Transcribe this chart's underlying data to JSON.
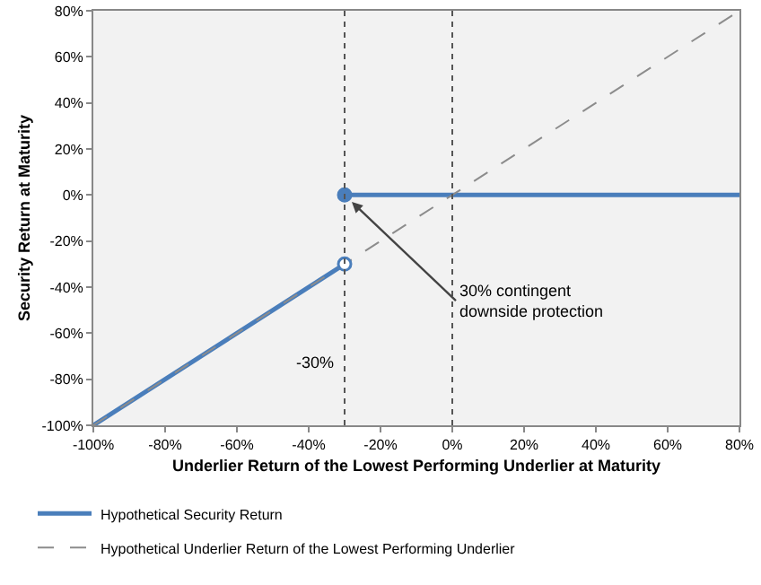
{
  "chart_data": {
    "type": "line",
    "xlabel": "Underlier Return of the Lowest Performing Underlier at Maturity",
    "ylabel": "Security Return at Maturity",
    "xlim": [
      -100,
      80
    ],
    "ylim": [
      -100,
      80
    ],
    "xticks": [
      {
        "value": -100,
        "label": "-100%"
      },
      {
        "value": -80,
        "label": "-80%"
      },
      {
        "value": -60,
        "label": "-60%"
      },
      {
        "value": -40,
        "label": "-40%"
      },
      {
        "value": -20,
        "label": "-20%"
      },
      {
        "value": 0,
        "label": "0%"
      },
      {
        "value": 20,
        "label": "20%"
      },
      {
        "value": 40,
        "label": "40%"
      },
      {
        "value": 60,
        "label": "60%"
      },
      {
        "value": 80,
        "label": "80%"
      }
    ],
    "yticks": [
      {
        "value": -100,
        "label": "-100%"
      },
      {
        "value": -80,
        "label": "-80%"
      },
      {
        "value": -60,
        "label": "-60%"
      },
      {
        "value": -40,
        "label": "-40%"
      },
      {
        "value": -20,
        "label": "-20%"
      },
      {
        "value": 0,
        "label": "0%"
      },
      {
        "value": 20,
        "label": "20%"
      },
      {
        "value": 40,
        "label": "40%"
      },
      {
        "value": 60,
        "label": "60%"
      },
      {
        "value": 80,
        "label": "80%"
      }
    ],
    "series": [
      {
        "name": "Hypothetical Security Return",
        "color": "#4a7ebb",
        "x": [
          -100,
          -30,
          null,
          -30,
          80
        ],
        "values": [
          -100,
          -30,
          null,
          0,
          0
        ],
        "line_style": "solid",
        "marker": "none"
      },
      {
        "name": "Hypothetical Underlier Return of the Lowest Performing Underlier",
        "color": "#8c8c8c",
        "x": [
          -100,
          80
        ],
        "values": [
          -100,
          80
        ],
        "line_style": "dashed",
        "marker": "none"
      },
      {
        "type": "scatter",
        "color": "#4a7ebb",
        "x": [
          -30,
          -30
        ],
        "values": [
          -30,
          0
        ],
        "colors": [
          "#ffffff",
          "#4a7ebb"
        ],
        "marker": "circle"
      }
    ],
    "ref_lines": [
      {
        "axis": "x",
        "value": -30,
        "label": "-30%",
        "line_style": "dotted",
        "color": "#555555"
      },
      {
        "axis": "x",
        "value": 0,
        "line_style": "dotted",
        "color": "#555555"
      }
    ],
    "annotations": [
      {
        "text": "30% contingent downside protection",
        "x": -28,
        "y": -3
      }
    ],
    "grid": false,
    "legend": "bottom"
  }
}
